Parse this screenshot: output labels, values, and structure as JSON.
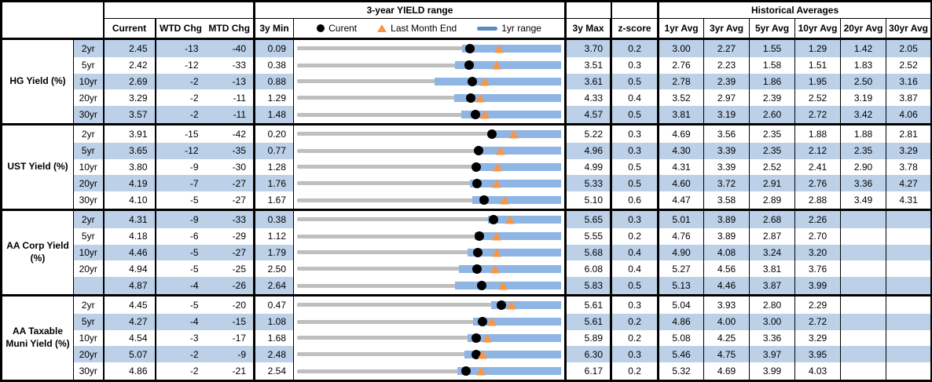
{
  "header": {
    "yield_range_title": "3-year YIELD range",
    "historical_title": "Historical Averages",
    "current": "Current",
    "wtd_chg": "WTD Chg",
    "mtd_chg": "MTD Chg",
    "min_3y": "3y Min",
    "max_3y": "3y Max",
    "z_score": "z-score",
    "avg_cols": [
      "1yr Avg",
      "3yr Avg",
      "5yr Avg",
      "10yr Avg",
      "20yr Avg",
      "30yr Avg"
    ],
    "legend": {
      "current": "Curent",
      "last_month_end": "Last Month End",
      "yr1_range": "1yr range"
    }
  },
  "colors": {
    "row_shade_blue": "#BCD0E8",
    "range_bar_blue": "#8FB5E4",
    "legend_line_blue": "#5B8BC0",
    "track_gray": "#BFBFBF",
    "current_marker_black": "#000000",
    "last_month_end_orange": "#F79646",
    "border_black": "#000000"
  },
  "chart_data": {
    "type": "table",
    "subtype": "bullet-range",
    "title": "3-year YIELD range",
    "legend_entries": [
      "Curent",
      "Last Month End",
      "1yr range"
    ],
    "groups": [
      {
        "label": "HG Yield (%)",
        "rows": [
          {
            "tenor": "2yr",
            "current": "2.45",
            "wtd_chg": "-13",
            "mtd_chg": "-40",
            "min_3y": "0.09",
            "max_3y": "3.70",
            "z_score": "0.2",
            "avgs": [
              "3.00",
              "2.27",
              "1.55",
              "1.29",
              "1.42",
              "2.05"
            ],
            "chart": {
              "min_3y": 0.09,
              "max_3y": 3.7,
              "current": 2.45,
              "last_month_end": 2.85,
              "yr1_low": 2.35,
              "yr1_high": 3.7
            }
          },
          {
            "tenor": "5yr",
            "current": "2.42",
            "wtd_chg": "-12",
            "mtd_chg": "-33",
            "min_3y": "0.38",
            "max_3y": "3.51",
            "z_score": "0.3",
            "avgs": [
              "2.76",
              "2.23",
              "1.58",
              "1.51",
              "1.83",
              "2.52"
            ],
            "chart": {
              "min_3y": 0.38,
              "max_3y": 3.51,
              "current": 2.42,
              "last_month_end": 2.75,
              "yr1_low": 2.25,
              "yr1_high": 3.51
            }
          },
          {
            "tenor": "10yr",
            "current": "2.69",
            "wtd_chg": "-2",
            "mtd_chg": "-13",
            "min_3y": "0.88",
            "max_3y": "3.61",
            "z_score": "0.5",
            "avgs": [
              "2.78",
              "2.39",
              "1.86",
              "1.95",
              "2.50",
              "3.16"
            ],
            "chart": {
              "min_3y": 0.88,
              "max_3y": 3.61,
              "current": 2.69,
              "last_month_end": 2.82,
              "yr1_low": 2.3,
              "yr1_high": 3.61
            }
          },
          {
            "tenor": "20yr",
            "current": "3.29",
            "wtd_chg": "-2",
            "mtd_chg": "-11",
            "min_3y": "1.29",
            "max_3y": "4.33",
            "z_score": "0.4",
            "avgs": [
              "3.52",
              "2.97",
              "2.39",
              "2.52",
              "3.19",
              "3.87"
            ],
            "chart": {
              "min_3y": 1.29,
              "max_3y": 4.33,
              "current": 3.29,
              "last_month_end": 3.4,
              "yr1_low": 3.1,
              "yr1_high": 4.33
            }
          },
          {
            "tenor": "30yr",
            "current": "3.57",
            "wtd_chg": "-2",
            "mtd_chg": "-11",
            "min_3y": "1.48",
            "max_3y": "4.57",
            "z_score": "0.5",
            "avgs": [
              "3.81",
              "3.19",
              "2.60",
              "2.72",
              "3.42",
              "4.06"
            ],
            "chart": {
              "min_3y": 1.48,
              "max_3y": 4.57,
              "current": 3.57,
              "last_month_end": 3.68,
              "yr1_low": 3.4,
              "yr1_high": 4.57
            }
          }
        ]
      },
      {
        "label": "UST Yield (%)",
        "rows": [
          {
            "tenor": "2yr",
            "current": "3.91",
            "wtd_chg": "-15",
            "mtd_chg": "-42",
            "min_3y": "0.20",
            "max_3y": "5.22",
            "z_score": "0.3",
            "avgs": [
              "4.69",
              "3.56",
              "2.35",
              "1.88",
              "1.88",
              "2.81"
            ],
            "chart": {
              "min_3y": 0.2,
              "max_3y": 5.22,
              "current": 3.91,
              "last_month_end": 4.33,
              "yr1_low": 3.85,
              "yr1_high": 5.22
            }
          },
          {
            "tenor": "5yr",
            "current": "3.65",
            "wtd_chg": "-12",
            "mtd_chg": "-35",
            "min_3y": "0.77",
            "max_3y": "4.96",
            "z_score": "0.3",
            "avgs": [
              "4.30",
              "3.39",
              "2.35",
              "2.12",
              "2.35",
              "3.29"
            ],
            "chart": {
              "min_3y": 0.77,
              "max_3y": 4.96,
              "current": 3.65,
              "last_month_end": 4.0,
              "yr1_low": 3.6,
              "yr1_high": 4.96
            }
          },
          {
            "tenor": "10yr",
            "current": "3.80",
            "wtd_chg": "-9",
            "mtd_chg": "-30",
            "min_3y": "1.28",
            "max_3y": "4.99",
            "z_score": "0.5",
            "avgs": [
              "4.31",
              "3.39",
              "2.52",
              "2.41",
              "2.90",
              "3.78"
            ],
            "chart": {
              "min_3y": 1.28,
              "max_3y": 4.99,
              "current": 3.8,
              "last_month_end": 4.1,
              "yr1_low": 3.75,
              "yr1_high": 4.99
            }
          },
          {
            "tenor": "20yr",
            "current": "4.19",
            "wtd_chg": "-7",
            "mtd_chg": "-27",
            "min_3y": "1.76",
            "max_3y": "5.33",
            "z_score": "0.5",
            "avgs": [
              "4.60",
              "3.72",
              "2.91",
              "2.76",
              "3.36",
              "4.27"
            ],
            "chart": {
              "min_3y": 1.76,
              "max_3y": 5.33,
              "current": 4.19,
              "last_month_end": 4.46,
              "yr1_low": 4.1,
              "yr1_high": 5.33
            }
          },
          {
            "tenor": "30yr",
            "current": "4.10",
            "wtd_chg": "-5",
            "mtd_chg": "-27",
            "min_3y": "1.67",
            "max_3y": "5.10",
            "z_score": "0.6",
            "avgs": [
              "4.47",
              "3.58",
              "2.89",
              "2.88",
              "3.49",
              "4.31"
            ],
            "chart": {
              "min_3y": 1.67,
              "max_3y": 5.1,
              "current": 4.1,
              "last_month_end": 4.37,
              "yr1_low": 3.95,
              "yr1_high": 5.1
            }
          }
        ]
      },
      {
        "label": "AA Corp Yield (%)",
        "rows": [
          {
            "tenor": "2yr",
            "current": "4.31",
            "wtd_chg": "-9",
            "mtd_chg": "-33",
            "min_3y": "0.38",
            "max_3y": "5.65",
            "z_score": "0.3",
            "avgs": [
              "5.01",
              "3.89",
              "2.68",
              "2.26",
              "",
              ""
            ],
            "chart": {
              "min_3y": 0.38,
              "max_3y": 5.65,
              "current": 4.31,
              "last_month_end": 4.64,
              "yr1_low": 4.2,
              "yr1_high": 5.65
            }
          },
          {
            "tenor": "5yr",
            "current": "4.18",
            "wtd_chg": "-6",
            "mtd_chg": "-29",
            "min_3y": "1.12",
            "max_3y": "5.55",
            "z_score": "0.2",
            "avgs": [
              "4.76",
              "3.89",
              "2.87",
              "2.70",
              "",
              ""
            ],
            "chart": {
              "min_3y": 1.12,
              "max_3y": 5.55,
              "current": 4.18,
              "last_month_end": 4.47,
              "yr1_low": 4.1,
              "yr1_high": 5.55
            }
          },
          {
            "tenor": "10yr",
            "current": "4.46",
            "wtd_chg": "-5",
            "mtd_chg": "-27",
            "min_3y": "1.79",
            "max_3y": "5.68",
            "z_score": "0.4",
            "avgs": [
              "4.90",
              "4.08",
              "3.24",
              "3.20",
              "",
              ""
            ],
            "chart": {
              "min_3y": 1.79,
              "max_3y": 5.68,
              "current": 4.46,
              "last_month_end": 4.73,
              "yr1_low": 4.3,
              "yr1_high": 5.68
            }
          },
          {
            "tenor": "20yr",
            "current": "4.94",
            "wtd_chg": "-5",
            "mtd_chg": "-25",
            "min_3y": "2.50",
            "max_3y": "6.08",
            "z_score": "0.4",
            "avgs": [
              "5.27",
              "4.56",
              "3.81",
              "3.76",
              "",
              ""
            ],
            "chart": {
              "min_3y": 2.5,
              "max_3y": 6.08,
              "current": 4.94,
              "last_month_end": 5.19,
              "yr1_low": 4.7,
              "yr1_high": 6.08
            }
          },
          {
            "tenor": "",
            "current": "4.87",
            "wtd_chg": "-4",
            "mtd_chg": "-26",
            "min_3y": "2.64",
            "max_3y": "5.83",
            "z_score": "0.5",
            "avgs": [
              "5.13",
              "4.46",
              "3.87",
              "3.99",
              "",
              ""
            ],
            "chart": {
              "min_3y": 2.64,
              "max_3y": 5.83,
              "current": 4.87,
              "last_month_end": 5.13,
              "yr1_low": 4.55,
              "yr1_high": 5.83
            }
          }
        ]
      },
      {
        "label": "AA Taxable Muni Yield (%)",
        "rows": [
          {
            "tenor": "2yr",
            "current": "4.45",
            "wtd_chg": "-5",
            "mtd_chg": "-20",
            "min_3y": "0.47",
            "max_3y": "5.61",
            "z_score": "0.3",
            "avgs": [
              "5.04",
              "3.93",
              "2.80",
              "2.29",
              "",
              ""
            ],
            "chart": {
              "min_3y": 0.47,
              "max_3y": 5.61,
              "current": 4.45,
              "last_month_end": 4.65,
              "yr1_low": 4.25,
              "yr1_high": 5.61
            }
          },
          {
            "tenor": "5yr",
            "current": "4.27",
            "wtd_chg": "-4",
            "mtd_chg": "-15",
            "min_3y": "1.08",
            "max_3y": "5.61",
            "z_score": "0.2",
            "avgs": [
              "4.86",
              "4.00",
              "3.00",
              "2.72",
              "",
              ""
            ],
            "chart": {
              "min_3y": 1.08,
              "max_3y": 5.61,
              "current": 4.27,
              "last_month_end": 4.42,
              "yr1_low": 4.1,
              "yr1_high": 5.61
            }
          },
          {
            "tenor": "10yr",
            "current": "4.54",
            "wtd_chg": "-3",
            "mtd_chg": "-17",
            "min_3y": "1.68",
            "max_3y": "5.89",
            "z_score": "0.2",
            "avgs": [
              "5.08",
              "4.25",
              "3.36",
              "3.29",
              "",
              ""
            ],
            "chart": {
              "min_3y": 1.68,
              "max_3y": 5.89,
              "current": 4.54,
              "last_month_end": 4.71,
              "yr1_low": 4.4,
              "yr1_high": 5.89
            }
          },
          {
            "tenor": "20yr",
            "current": "5.07",
            "wtd_chg": "-2",
            "mtd_chg": "-9",
            "min_3y": "2.48",
            "max_3y": "6.30",
            "z_score": "0.3",
            "avgs": [
              "5.46",
              "4.75",
              "3.97",
              "3.95",
              "",
              ""
            ],
            "chart": {
              "min_3y": 2.48,
              "max_3y": 6.3,
              "current": 5.07,
              "last_month_end": 5.16,
              "yr1_low": 4.9,
              "yr1_high": 6.3
            }
          },
          {
            "tenor": "30yr",
            "current": "4.86",
            "wtd_chg": "-2",
            "mtd_chg": "-21",
            "min_3y": "2.54",
            "max_3y": "6.17",
            "z_score": "0.2",
            "avgs": [
              "5.32",
              "4.69",
              "3.99",
              "4.03",
              "",
              ""
            ],
            "chart": {
              "min_3y": 2.54,
              "max_3y": 6.17,
              "current": 4.86,
              "last_month_end": 5.07,
              "yr1_low": 4.75,
              "yr1_high": 6.17
            }
          }
        ]
      }
    ]
  }
}
